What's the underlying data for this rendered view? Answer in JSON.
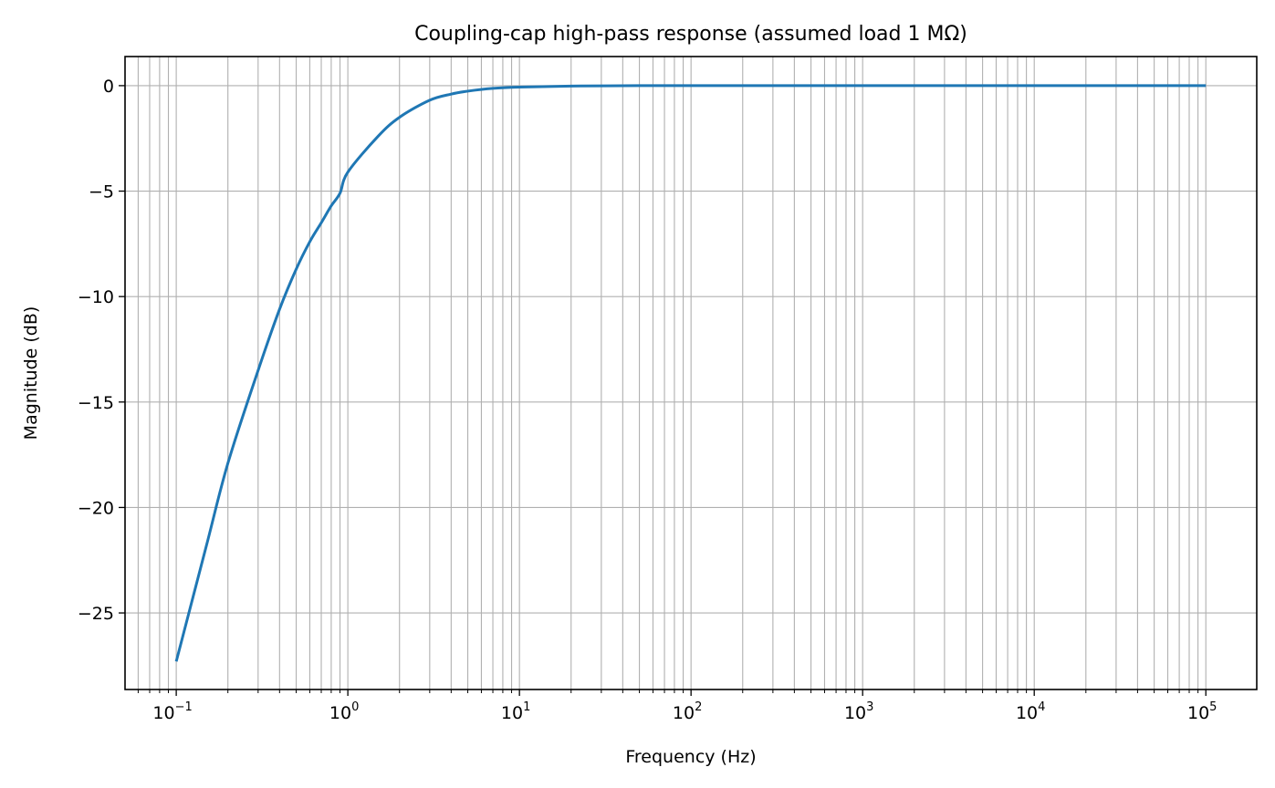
{
  "chart_data": {
    "type": "line",
    "title": "Coupling-cap high-pass response (assumed load 1 MΩ)",
    "xlabel": "Frequency (Hz)",
    "ylabel": "Magnitude (dB)",
    "xscale": "log",
    "xlim": [
      0.0503,
      198000
    ],
    "ylim": [
      -28.63,
      1.38
    ],
    "grid": true,
    "grid_which": "both",
    "legend": null,
    "x_ticks": [
      {
        "base": "10",
        "exp": "−1",
        "value": 0.1
      },
      {
        "base": "10",
        "exp": "0",
        "value": 1
      },
      {
        "base": "10",
        "exp": "1",
        "value": 10
      },
      {
        "base": "10",
        "exp": "2",
        "value": 100
      },
      {
        "base": "10",
        "exp": "3",
        "value": 1000
      },
      {
        "base": "10",
        "exp": "4",
        "value": 10000
      },
      {
        "base": "10",
        "exp": "5",
        "value": 100000
      }
    ],
    "y_ticks": [
      {
        "label": "0",
        "value": 0
      },
      {
        "label": "−5",
        "value": -5
      },
      {
        "label": "−10",
        "value": -10
      },
      {
        "label": "−15",
        "value": -15
      },
      {
        "label": "−20",
        "value": -20
      },
      {
        "label": "−25",
        "value": -25
      }
    ],
    "series": [
      {
        "name": "magnitude",
        "color": "#1f77b4",
        "x": [
          0.1,
          0.15,
          0.2,
          0.3,
          0.4,
          0.5,
          0.6,
          0.7,
          0.8,
          0.9,
          1.0,
          1.5,
          2.0,
          3.0,
          4.0,
          5.0,
          7.0,
          10.0,
          20.0,
          50.0,
          100.0,
          1000.0,
          10000.0,
          100000.0
        ],
        "values": [
          -27.3,
          -21.8,
          -17.9,
          -13.5,
          -10.6,
          -8.7,
          -7.4,
          -6.5,
          -5.7,
          -5.1,
          -4.1,
          -2.4,
          -1.5,
          -0.69,
          -0.4,
          -0.26,
          -0.13,
          -0.07,
          -0.02,
          0.0,
          0.0,
          0.0,
          0.0,
          0.0
        ]
      }
    ]
  },
  "colors": {
    "line": "#1f77b4",
    "grid": "#b0b0b0",
    "axes": "#000000",
    "background": "#ffffff"
  }
}
